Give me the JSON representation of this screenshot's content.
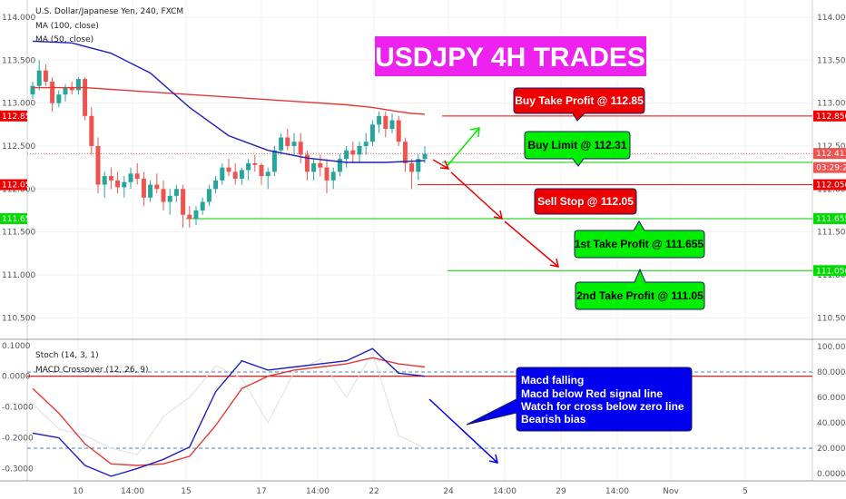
{
  "legend": {
    "symbol": "U.S. Dollar/Japanese Yen, 240, FXCM",
    "ma100": "MA (100, close)",
    "ma50": "MA (50, close)",
    "stoch": "Stoch (14, 3, 1)",
    "macd": "MACD Crossover (12, 26, 9)"
  },
  "title_banner": {
    "text": "USDJPY 4H TRADES",
    "bg": "#ee22ee"
  },
  "annotations": {
    "buy_tp": "Buy Take Profit @ 112.85",
    "buy_limit": "Buy Limit @ 112.31",
    "sell_stop": "Sell Stop @ 112.05",
    "tp1": "1st Take Profit @ 111.655",
    "tp2": "2nd Take Profit @ 111.05",
    "macd_notes": [
      "Macd falling",
      "Macd below Red signal line",
      "Watch for cross below zero line",
      "Bearish bias"
    ]
  },
  "colors": {
    "up": "#26a69a",
    "down": "#ef5350",
    "ma100": "#e53935",
    "ma50": "#1f1fbf",
    "red_box": "#ee0000",
    "green_box": "#00ee00",
    "blue_box": "#0000ee"
  },
  "chart_data": [
    {
      "type": "candlestick",
      "title": "U.S. Dollar/Japanese Yen, 240, FXCM",
      "y_ticks": [
        "114.000",
        "113.500",
        "113.000",
        "112.500",
        "112.000",
        "111.500",
        "111.000",
        "110.500"
      ],
      "ylim": [
        110.25,
        114.2
      ],
      "x_ticks": [
        "10",
        "14:00",
        "15",
        "17",
        "14:00",
        "22",
        "24",
        "14:00",
        "29",
        "14:00",
        "Nov",
        "5"
      ],
      "price_tags": [
        {
          "label": "112.850",
          "value": 112.85,
          "color": "#ee0000"
        },
        {
          "label": "112.413",
          "value": 112.413,
          "color": "#ef5350"
        },
        {
          "label": "03:29:28",
          "value": 112.25,
          "color": "#ef5350"
        },
        {
          "label": "112.050",
          "value": 112.05,
          "color": "#ee0000"
        },
        {
          "label": "111.655",
          "value": 111.655,
          "color": "#00dd00"
        },
        {
          "label": "111.050",
          "value": 111.05,
          "color": "#00dd00"
        }
      ],
      "levels": [
        {
          "name": "Buy Take Profit",
          "value": 112.85
        },
        {
          "name": "Buy Limit",
          "value": 112.31
        },
        {
          "name": "Sell Stop",
          "value": 112.05
        },
        {
          "name": "1st Take Profit",
          "value": 111.655
        },
        {
          "name": "2nd Take Profit",
          "value": 111.05
        }
      ],
      "candles": [
        [
          113.1,
          113.25,
          113.05,
          113.2
        ],
        [
          113.2,
          113.5,
          113.15,
          113.38
        ],
        [
          113.38,
          113.45,
          113.2,
          113.25
        ],
        [
          113.25,
          113.3,
          112.9,
          113.0
        ],
        [
          113.0,
          113.15,
          112.95,
          113.1
        ],
        [
          113.1,
          113.22,
          113.02,
          113.18
        ],
        [
          113.18,
          113.25,
          113.1,
          113.15
        ],
        [
          113.15,
          113.3,
          113.1,
          113.28
        ],
        [
          113.28,
          113.3,
          112.8,
          112.85
        ],
        [
          112.85,
          112.95,
          112.4,
          112.5
        ],
        [
          112.5,
          112.6,
          111.95,
          112.05
        ],
        [
          112.05,
          112.2,
          111.9,
          112.15
        ],
        [
          112.15,
          112.25,
          112.0,
          112.1
        ],
        [
          112.1,
          112.2,
          111.95,
          112.02
        ],
        [
          112.02,
          112.15,
          111.9,
          112.08
        ],
        [
          112.08,
          112.25,
          112.0,
          112.18
        ],
        [
          112.18,
          112.3,
          112.05,
          112.12
        ],
        [
          112.12,
          112.2,
          111.8,
          111.9
        ],
        [
          111.9,
          112.1,
          111.85,
          112.05
        ],
        [
          112.05,
          112.18,
          111.95,
          112.0
        ],
        [
          112.0,
          112.1,
          111.75,
          111.85
        ],
        [
          111.85,
          112.0,
          111.7,
          111.92
        ],
        [
          111.92,
          112.05,
          111.85,
          112.0
        ],
        [
          112.0,
          112.05,
          111.55,
          111.7
        ],
        [
          111.7,
          111.8,
          111.55,
          111.65
        ],
        [
          111.65,
          111.8,
          111.58,
          111.75
        ],
        [
          111.75,
          111.9,
          111.7,
          111.85
        ],
        [
          111.85,
          112.05,
          111.8,
          112.0
        ],
        [
          112.0,
          112.15,
          111.95,
          112.1
        ],
        [
          112.1,
          112.3,
          112.05,
          112.25
        ],
        [
          112.25,
          112.35,
          112.15,
          112.2
        ],
        [
          112.2,
          112.3,
          112.05,
          112.12
        ],
        [
          112.12,
          112.25,
          112.05,
          112.22
        ],
        [
          112.22,
          112.35,
          112.1,
          112.3
        ],
        [
          112.3,
          112.4,
          112.2,
          112.28
        ],
        [
          112.28,
          112.3,
          112.05,
          112.15
        ],
        [
          112.15,
          112.25,
          112.0,
          112.2
        ],
        [
          112.2,
          112.5,
          112.15,
          112.45
        ],
        [
          112.45,
          112.65,
          112.4,
          112.6
        ],
        [
          112.6,
          112.7,
          112.45,
          112.5
        ],
        [
          112.5,
          112.65,
          112.4,
          112.55
        ],
        [
          112.55,
          112.65,
          112.3,
          112.4
        ],
        [
          112.4,
          112.45,
          112.1,
          112.2
        ],
        [
          112.2,
          112.35,
          112.1,
          112.3
        ],
        [
          112.3,
          112.4,
          112.15,
          112.25
        ],
        [
          112.25,
          112.35,
          111.95,
          112.1
        ],
        [
          112.1,
          112.25,
          112.0,
          112.2
        ],
        [
          112.2,
          112.4,
          112.15,
          112.35
        ],
        [
          112.35,
          112.5,
          112.25,
          112.45
        ],
        [
          112.45,
          112.55,
          112.3,
          112.4
        ],
        [
          112.4,
          112.55,
          112.3,
          112.5
        ],
        [
          112.5,
          112.65,
          112.4,
          112.55
        ],
        [
          112.55,
          112.8,
          112.5,
          112.75
        ],
        [
          112.75,
          112.9,
          112.65,
          112.85
        ],
        [
          112.85,
          112.9,
          112.6,
          112.7
        ],
        [
          112.7,
          112.88,
          112.65,
          112.8
        ],
        [
          112.8,
          112.85,
          112.5,
          112.55
        ],
        [
          112.55,
          112.6,
          112.2,
          112.3
        ],
        [
          112.3,
          112.35,
          112.0,
          112.2
        ],
        [
          112.2,
          112.4,
          112.1,
          112.35
        ],
        [
          112.35,
          112.5,
          112.3,
          112.41
        ]
      ],
      "ma100": [
        [
          0,
          113.18
        ],
        [
          8,
          113.18
        ],
        [
          16,
          113.14
        ],
        [
          24,
          113.1
        ],
        [
          32,
          113.06
        ],
        [
          40,
          113.02
        ],
        [
          48,
          112.98
        ],
        [
          52,
          112.95
        ],
        [
          56,
          112.9
        ],
        [
          58,
          112.88
        ],
        [
          60,
          112.87
        ]
      ],
      "ma50": [
        [
          0,
          113.72
        ],
        [
          6,
          113.7
        ],
        [
          12,
          113.58
        ],
        [
          18,
          113.35
        ],
        [
          24,
          112.95
        ],
        [
          30,
          112.62
        ],
        [
          36,
          112.45
        ],
        [
          42,
          112.36
        ],
        [
          48,
          112.31
        ],
        [
          54,
          112.31
        ],
        [
          60,
          112.33
        ]
      ]
    },
    {
      "type": "line",
      "title": "MACD Crossover (12, 26, 9)",
      "y_ticks_left": [
        "0.1000",
        "0.0000",
        "-0.1000",
        "-0.2000",
        "-0.3000"
      ],
      "ylim_left": [
        -0.34,
        0.12
      ],
      "y_ticks_right": [
        "100.0000",
        "80.0000",
        "60.0000",
        "40.0000",
        "20.0000",
        "0.0000"
      ],
      "ylim_right": [
        0,
        100
      ],
      "stoch_levels": [
        80,
        20
      ],
      "series": [
        {
          "name": "MACD",
          "x": [
            0,
            4,
            8,
            12,
            16,
            20,
            24,
            28,
            32,
            36,
            40,
            44,
            48,
            52,
            56,
            60
          ],
          "values": [
            -0.185,
            -0.2,
            -0.29,
            -0.325,
            -0.3,
            -0.27,
            -0.23,
            -0.05,
            0.05,
            0.02,
            0.03,
            0.04,
            0.05,
            0.09,
            0.01,
            0.0
          ]
        },
        {
          "name": "Signal",
          "x": [
            0,
            4,
            8,
            12,
            16,
            20,
            24,
            28,
            32,
            36,
            40,
            44,
            48,
            52,
            56,
            60
          ],
          "values": [
            -0.04,
            -0.12,
            -0.22,
            -0.285,
            -0.29,
            -0.285,
            -0.26,
            -0.16,
            -0.04,
            0.0,
            0.02,
            0.03,
            0.04,
            0.06,
            0.04,
            0.03
          ]
        },
        {
          "name": "Stoch",
          "x": [
            0,
            4,
            8,
            12,
            16,
            20,
            24,
            28,
            32,
            36,
            40,
            44,
            48,
            52,
            56,
            60
          ],
          "values": [
            55,
            35,
            30,
            20,
            15,
            45,
            60,
            85,
            75,
            40,
            80,
            90,
            60,
            95,
            30,
            20
          ]
        }
      ]
    }
  ]
}
